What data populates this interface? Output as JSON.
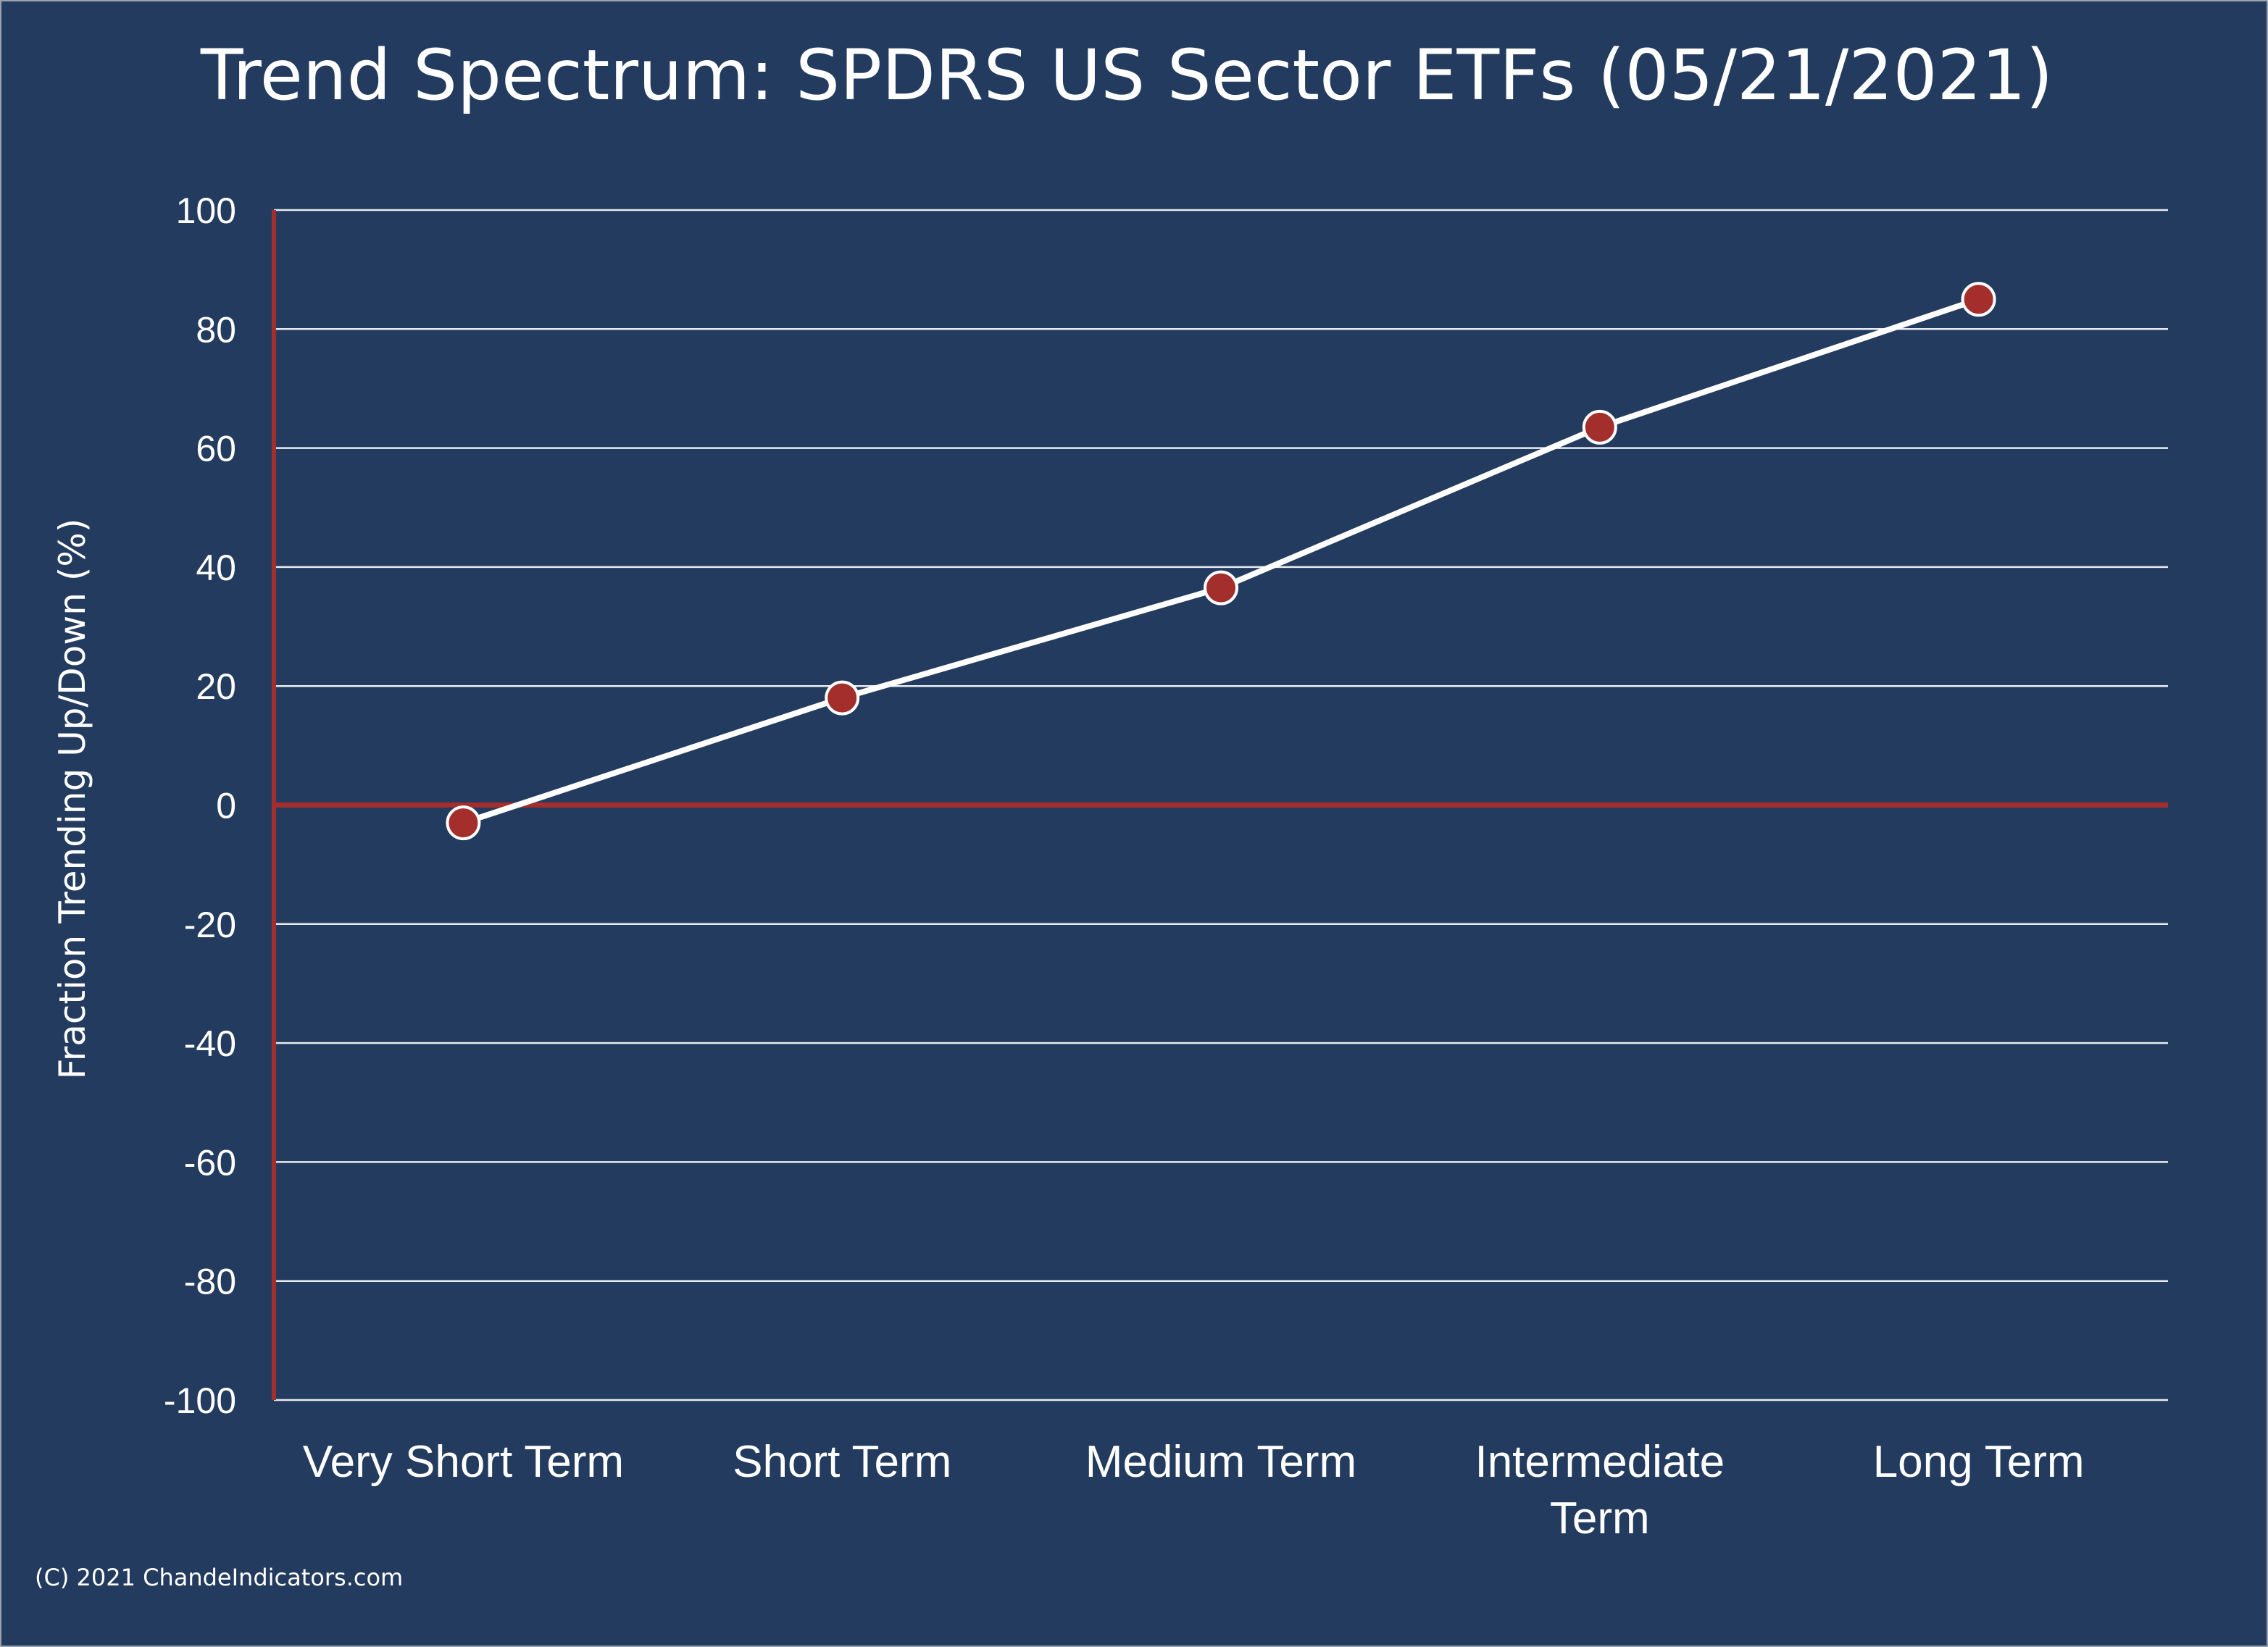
{
  "chart_data": {
    "type": "line",
    "title": "Trend Spectrum: SPDRS US Sector ETFs (05/21/2021)",
    "ylabel": "Fraction Trending Up/Down (%)",
    "xlabel": "",
    "categories": [
      "Very Short Term",
      "Short Term",
      "Medium Term",
      "Intermediate Term",
      "Long Term"
    ],
    "category_lines": [
      [
        "Very Short Term"
      ],
      [
        "Short Term"
      ],
      [
        "Medium Term"
      ],
      [
        "Intermediate",
        "Term"
      ],
      [
        "Long Term"
      ]
    ],
    "series": [
      {
        "values": [
          -3,
          18,
          36.5,
          63.5,
          85
        ]
      }
    ],
    "ylim": [
      -100,
      100
    ],
    "yticks": [
      100,
      80,
      60,
      40,
      20,
      0,
      -20,
      -40,
      -60,
      -80,
      -100
    ],
    "grid": true,
    "legend": "none"
  },
  "footer": "(C) 2021 ChandeIndicators.com",
  "colors": {
    "background": "#233B5E",
    "gridline": "#E8ECF2",
    "axis": "#A32E2B",
    "line": "#FFFFFF",
    "marker_fill": "#A32E2B",
    "marker_stroke": "#FFFFFF",
    "text": "#FFFFFF"
  }
}
